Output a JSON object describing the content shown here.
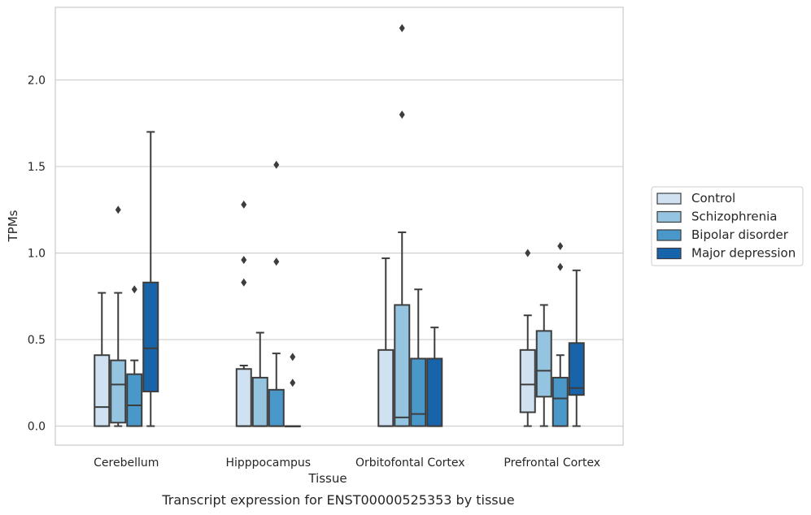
{
  "chart_data": {
    "type": "box",
    "caption": "Transcript expression for ENST00000525353 by tissue",
    "xlabel": "Tissue",
    "ylabel": "TPMs",
    "ylim": [
      -0.11,
      2.42
    ],
    "yticks": [
      0.0,
      0.5,
      1.0,
      1.5,
      2.0
    ],
    "ytick_labels": [
      "0.0",
      "0.5",
      "1.0",
      "1.5",
      "2.0"
    ],
    "grid": "horizontal",
    "legend_position": "right",
    "categories": [
      "Cerebellum",
      "Hipppocampus",
      "Orbitofontal Cortex",
      "Prefrontal Cortex"
    ],
    "series": [
      {
        "name": "Control",
        "color": "#d0e1f2",
        "boxes": [
          {
            "whislo": 0.0,
            "q1": 0.0,
            "med": 0.11,
            "q3": 0.41,
            "whishi": 0.77,
            "fliers": []
          },
          {
            "whislo": 0.0,
            "q1": 0.0,
            "med": 0.0,
            "q3": 0.33,
            "whishi": 0.35,
            "fliers": [
              0.83,
              0.96,
              1.28
            ]
          },
          {
            "whislo": 0.0,
            "q1": 0.0,
            "med": 0.0,
            "q3": 0.44,
            "whishi": 0.97,
            "fliers": []
          },
          {
            "whislo": 0.0,
            "q1": 0.08,
            "med": 0.24,
            "q3": 0.44,
            "whishi": 0.64,
            "fliers": [
              1.0
            ]
          }
        ]
      },
      {
        "name": "Schizophrenia",
        "color": "#94c4df",
        "boxes": [
          {
            "whislo": 0.0,
            "q1": 0.02,
            "med": 0.24,
            "q3": 0.38,
            "whishi": 0.77,
            "fliers": [
              1.25
            ]
          },
          {
            "whislo": 0.0,
            "q1": 0.0,
            "med": 0.0,
            "q3": 0.28,
            "whishi": 0.54,
            "fliers": []
          },
          {
            "whislo": 0.0,
            "q1": 0.0,
            "med": 0.05,
            "q3": 0.7,
            "whishi": 1.12,
            "fliers": [
              1.8,
              2.3
            ]
          },
          {
            "whislo": 0.0,
            "q1": 0.17,
            "med": 0.32,
            "q3": 0.55,
            "whishi": 0.7,
            "fliers": []
          }
        ]
      },
      {
        "name": "Bipolar disorder",
        "color": "#4a98c9",
        "boxes": [
          {
            "whislo": 0.0,
            "q1": 0.0,
            "med": 0.12,
            "q3": 0.3,
            "whishi": 0.38,
            "fliers": [
              0.79
            ]
          },
          {
            "whislo": 0.0,
            "q1": 0.0,
            "med": 0.0,
            "q3": 0.21,
            "whishi": 0.42,
            "fliers": [
              0.95,
              1.51
            ]
          },
          {
            "whislo": 0.0,
            "q1": 0.0,
            "med": 0.07,
            "q3": 0.39,
            "whishi": 0.79,
            "fliers": []
          },
          {
            "whislo": 0.0,
            "q1": 0.0,
            "med": 0.16,
            "q3": 0.28,
            "whishi": 0.41,
            "fliers": [
              0.92,
              1.04
            ]
          }
        ]
      },
      {
        "name": "Major depression",
        "color": "#1764ab",
        "boxes": [
          {
            "whislo": 0.0,
            "q1": 0.2,
            "med": 0.45,
            "q3": 0.83,
            "whishi": 1.7,
            "fliers": []
          },
          {
            "whislo": 0.0,
            "q1": 0.0,
            "med": 0.0,
            "q3": 0.0,
            "whishi": 0.0,
            "fliers": [
              0.25,
              0.4
            ]
          },
          {
            "whislo": 0.0,
            "q1": 0.0,
            "med": 0.0,
            "q3": 0.39,
            "whishi": 0.57,
            "fliers": []
          },
          {
            "whislo": 0.0,
            "q1": 0.18,
            "med": 0.22,
            "q3": 0.48,
            "whishi": 0.9,
            "fliers": []
          }
        ]
      }
    ]
  }
}
